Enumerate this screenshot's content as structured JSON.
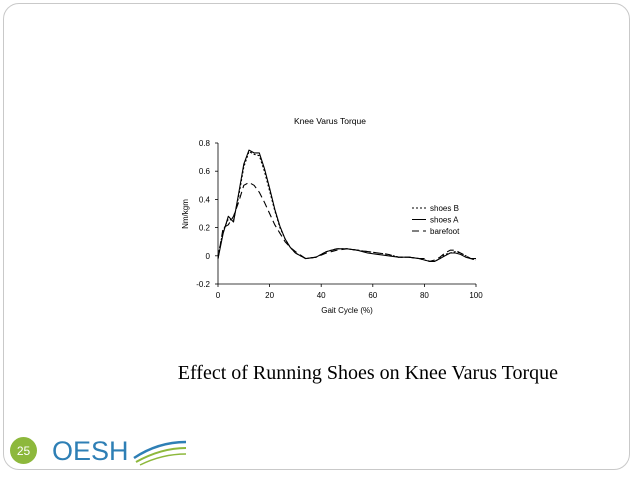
{
  "slide": {
    "caption": "Effect of Running Shoes on Knee Varus Torque",
    "page_number": "25",
    "logo_text": "OESH"
  },
  "colors": {
    "line": "#000000",
    "badge": "#8db83c",
    "logo": "#2e7fb5",
    "logo_accent": "#8db83c",
    "frame": "#c9c9c9"
  },
  "chart_data": {
    "type": "line",
    "title": "Knee Varus Torque",
    "xlabel": "Gait Cycle (%)",
    "ylabel": "Nm/kgm",
    "xlim": [
      0,
      100
    ],
    "ylim": [
      -0.2,
      0.8
    ],
    "xticks": [
      0,
      20,
      40,
      60,
      80,
      100
    ],
    "yticks": [
      -0.2,
      0,
      0.2,
      0.4,
      0.6,
      0.8
    ],
    "grid": false,
    "legend_position": "right",
    "series": [
      {
        "name": "shoes B",
        "dash": "dotted",
        "x": [
          0,
          2,
          4,
          6,
          8,
          10,
          12,
          14,
          16,
          18,
          20,
          22,
          24,
          26,
          28,
          30,
          34,
          38,
          42,
          46,
          50,
          54,
          58,
          62,
          66,
          70,
          74,
          78,
          80,
          82,
          84,
          86,
          88,
          90,
          92,
          94,
          96,
          98,
          100
        ],
        "y": [
          0.0,
          0.18,
          0.26,
          0.25,
          0.42,
          0.63,
          0.74,
          0.72,
          0.71,
          0.6,
          0.46,
          0.32,
          0.2,
          0.12,
          0.06,
          0.02,
          -0.02,
          -0.01,
          0.03,
          0.05,
          0.05,
          0.04,
          0.03,
          0.02,
          0.01,
          -0.01,
          -0.01,
          -0.02,
          -0.03,
          -0.04,
          -0.04,
          -0.02,
          0.01,
          0.02,
          0.03,
          0.02,
          0.0,
          -0.02,
          -0.03
        ]
      },
      {
        "name": "shoes A",
        "dash": "solid",
        "x": [
          0,
          2,
          4,
          6,
          8,
          10,
          12,
          14,
          16,
          18,
          20,
          22,
          24,
          26,
          28,
          30,
          34,
          38,
          42,
          46,
          50,
          54,
          58,
          62,
          66,
          70,
          74,
          78,
          80,
          82,
          84,
          86,
          88,
          90,
          92,
          94,
          96,
          98,
          100
        ],
        "y": [
          -0.02,
          0.16,
          0.28,
          0.24,
          0.44,
          0.65,
          0.75,
          0.73,
          0.73,
          0.62,
          0.48,
          0.33,
          0.21,
          0.12,
          0.06,
          0.02,
          -0.02,
          -0.01,
          0.03,
          0.05,
          0.05,
          0.04,
          0.02,
          0.01,
          0.0,
          -0.01,
          -0.01,
          -0.02,
          -0.03,
          -0.04,
          -0.04,
          -0.02,
          0.0,
          0.02,
          0.02,
          0.01,
          -0.01,
          -0.02,
          -0.02
        ]
      },
      {
        "name": "barefoot",
        "dash": "dashed",
        "x": [
          0,
          2,
          4,
          6,
          8,
          10,
          12,
          14,
          16,
          18,
          20,
          22,
          24,
          26,
          28,
          30,
          34,
          38,
          42,
          46,
          50,
          54,
          58,
          62,
          66,
          70,
          74,
          78,
          80,
          82,
          84,
          86,
          88,
          90,
          92,
          94,
          96,
          98,
          100
        ],
        "y": [
          -0.02,
          0.2,
          0.22,
          0.28,
          0.38,
          0.5,
          0.52,
          0.5,
          0.45,
          0.38,
          0.3,
          0.22,
          0.16,
          0.1,
          0.06,
          0.03,
          -0.02,
          -0.01,
          0.02,
          0.04,
          0.05,
          0.04,
          0.03,
          0.02,
          0.01,
          -0.01,
          -0.01,
          -0.02,
          -0.02,
          -0.04,
          -0.03,
          -0.01,
          0.02,
          0.04,
          0.04,
          0.02,
          0.0,
          -0.02,
          -0.03
        ]
      }
    ]
  }
}
